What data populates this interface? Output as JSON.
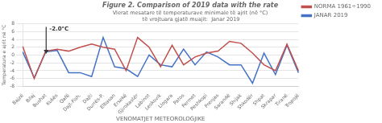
{
  "chart_data": {
    "type": "line",
    "title": "Figure 2. Comparison of 2019 data with the rate",
    "xlabel": "VENOMATJET METEOROLOGJIKE",
    "ylabel": "Temperatura e ajrit në °C",
    "annotations": [
      "Vlerat mesatare të temperaturave minimale të ajrit (në °C)\n të vrojtuara gjatë muajit:  Janar 2019",
      "-2.0°C"
    ],
    "categories": [
      "Bajzë",
      "Bilaj",
      "Bushat",
      "Kukës",
      "Qafë",
      "Dajt-Fish.",
      "Dajti",
      "Durrës-P.",
      "Elbasan",
      "Ersekë",
      "Gjirokastër",
      "Labinot",
      "Leskovik",
      "Llogara",
      "Patos",
      "Permet",
      "Peshkopi",
      "Prenjas",
      "Sarandë",
      "Shijak",
      "Shkodër",
      "Shpat",
      "Skrapar",
      "Tiranë",
      "Tropojë"
    ],
    "series": [
      {
        "name": "NORMA 1961÷1990",
        "color": "#c0504d",
        "values": [
          2.2,
          -6.0,
          1.0,
          1.5,
          1.0,
          2.0,
          2.8,
          2.0,
          1.5,
          -4.0,
          4.5,
          2.0,
          -3.0,
          2.5,
          -2.5,
          -0.5,
          0.5,
          1.0,
          3.5,
          3.0,
          0.5,
          -2.5,
          -4.0,
          2.8,
          -4.0
        ]
      },
      {
        "name": "JANAR 2019",
        "color": "#4472c4",
        "values": [
          0.8,
          -5.8,
          0.8,
          1.2,
          -4.5,
          -4.5,
          -5.5,
          4.5,
          -3.0,
          -3.5,
          -5.5,
          0.0,
          -2.5,
          -3.0,
          1.5,
          -2.5,
          0.8,
          -0.5,
          -2.5,
          -2.5,
          -7.2,
          0.5,
          -5.0,
          2.5,
          -4.5
        ]
      }
    ],
    "ylim": [
      -8.0,
      8.0
    ],
    "yticks": [
      -8,
      -6,
      -4,
      -2,
      0,
      2,
      4,
      6,
      8
    ],
    "grid": true,
    "legend": "upper right"
  }
}
